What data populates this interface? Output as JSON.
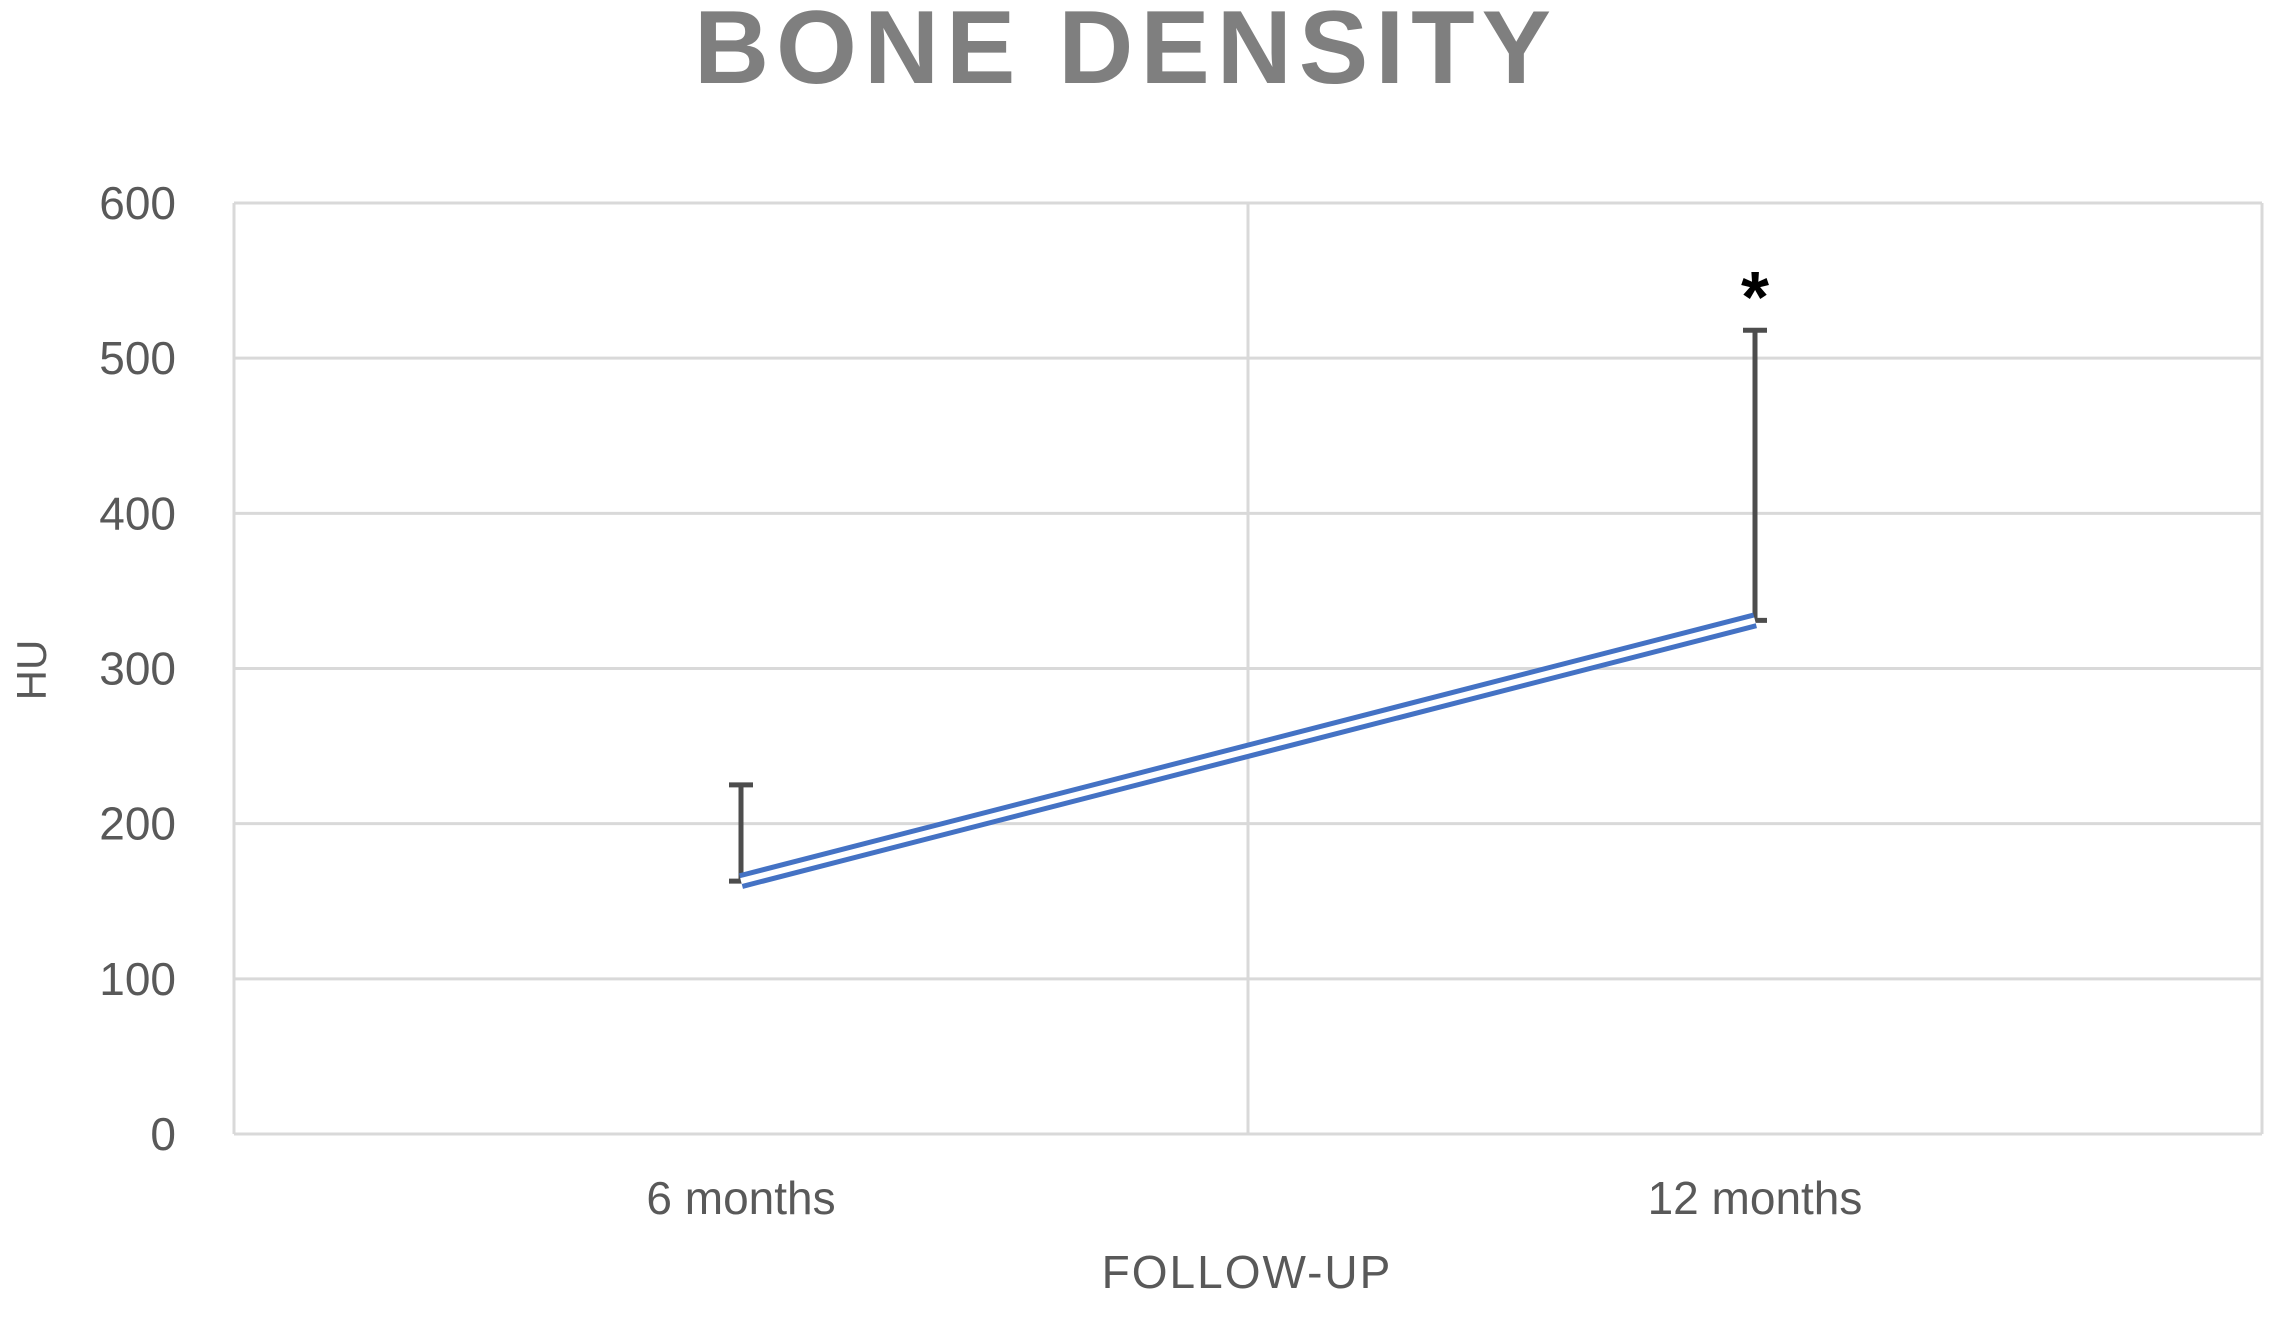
{
  "chart_data": {
    "type": "line",
    "title": "BONE DENSITY",
    "xlabel": "FOLLOW-UP",
    "ylabel": "HU",
    "categories": [
      "6 months",
      "12 months"
    ],
    "series": [
      {
        "values": [
          163,
          331
        ],
        "error_upper": [
          62,
          187
        ]
      }
    ],
    "annotations": [
      {
        "category": "12 months",
        "text": "*"
      }
    ],
    "ylim": [
      0,
      600
    ],
    "yticks": [
      "0",
      "100",
      "200",
      "300",
      "400",
      "500",
      "600"
    ],
    "grid": true,
    "line_style": "double",
    "colors": {
      "line": "#4472c4",
      "error_bar": "#4d4d4d",
      "grid": "#d9d9d9",
      "title": "#7f7f7f",
      "axis_text": "#595959",
      "annotation": "#000000"
    }
  }
}
